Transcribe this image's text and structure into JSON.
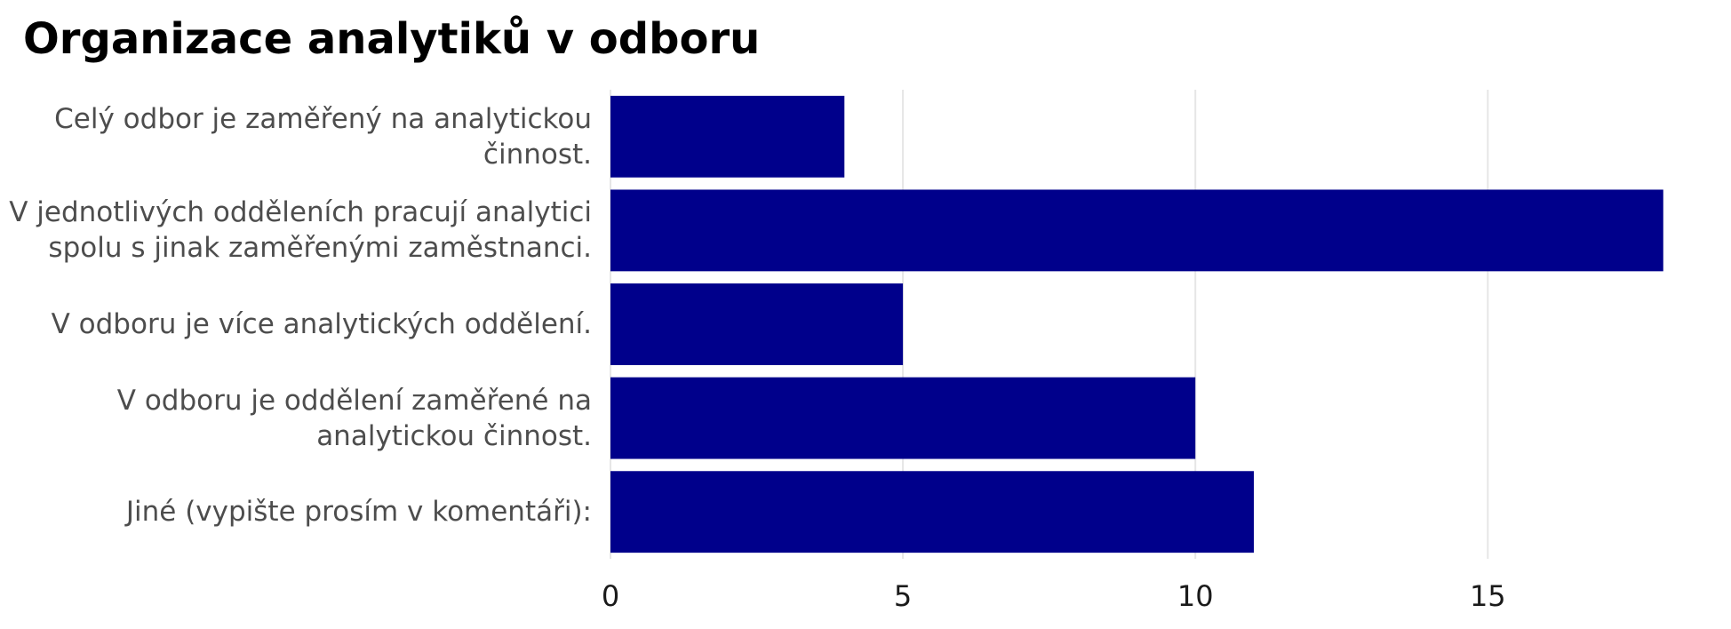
{
  "chart_data": {
    "type": "barh",
    "title": "Organizace analytiků v odboru",
    "categories": [
      "Celý odbor je zaměřený na analytickou činnost.",
      "V jednotlivých odděleních pracují analytici spolu s jinak zaměřenými zaměstnanci.",
      "V odboru je více analytických oddělení.",
      "V odboru je oddělení zaměřené na analytickou činnost.",
      "Jiné (vypište prosím v komentáři):"
    ],
    "values": [
      4,
      18,
      5,
      10,
      11
    ],
    "color": "#00008b",
    "xlim": [
      0,
      18.9
    ],
    "xticks": [
      0,
      5,
      10,
      15
    ],
    "grid": true
  }
}
